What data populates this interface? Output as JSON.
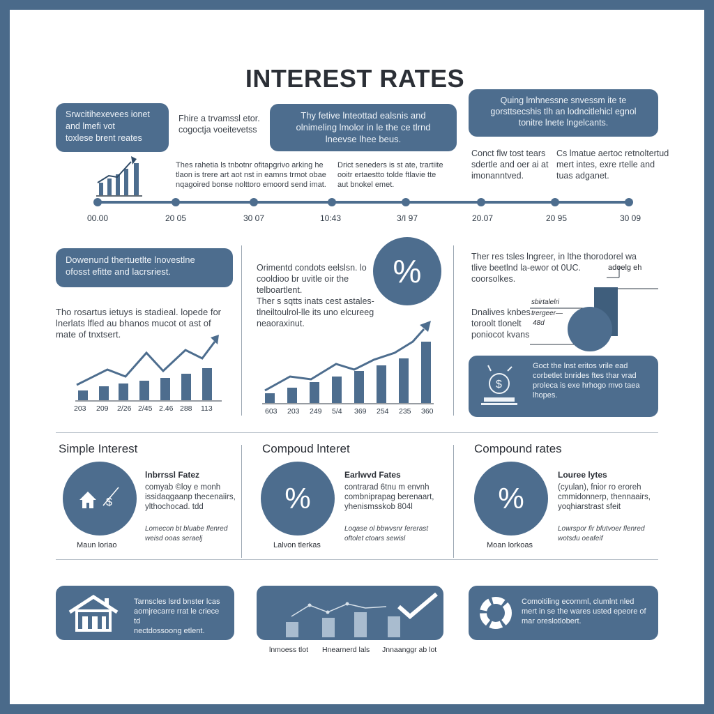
{
  "title": "INTEREST RATES",
  "top_row": {
    "pill_left": [
      "Srwcitihexevees ionet",
      "and lmefi vot",
      "toxlese brent reates"
    ],
    "note_a": [
      "Fhire a trvamssl etor.",
      "cogoctja voeitevetss"
    ],
    "pill_mid": [
      "Thy fetive lnteottad ealsnis and",
      "olnimeling lmolor in le the ce tlrnd",
      "lneevse lhee beus."
    ],
    "pill_right": [
      "Quing lmhnessne snvessm ite te",
      "gorsttsecshis tlh an lodncitlehicl egnol",
      "tonitre lnete lngelcants."
    ],
    "note_b": [
      "Thes rahetia ls tnbotnr ofitapgrivo arking he",
      "tlaon is trere art aot nst in eamns trmot obae",
      "nqagoired bonse nolttoro emoord send imat."
    ],
    "note_c": [
      "Drict seneders is st ate, trartiite",
      "ooitr ertaestto tolde ftlavie tte",
      "aut bnokel emet."
    ],
    "note_d": [
      "Conct flw tost tears",
      "sdertle and oer ai at",
      "imonanntved."
    ],
    "note_e": [
      "Cs lmatue aertoc retnoltertud",
      "mert intes, exre rtelle and",
      "tuas adganet."
    ]
  },
  "timeline": {
    "ticks": [
      "00.00",
      "20 05",
      "30 07",
      "10:43",
      "3/I 97",
      "20.07",
      "20 95",
      "30 09"
    ]
  },
  "mid_left": {
    "pill": [
      "Dowenund thertuetlte lnovestlne",
      "ofosst efitte and lacrsriest."
    ],
    "note": [
      "Tho rosartus ietuys is stadieal. lopede for",
      "lnerlats lfled au bhanos mucot ot ast of",
      "mate of tnxtsert."
    ],
    "chart_labels": [
      "203",
      "209",
      "2/26",
      "2/45",
      "2.46",
      "288",
      "113"
    ]
  },
  "mid_center": {
    "note1": [
      "Orimentd condots eelslsn. lo",
      "cooldioo br uvitle oir the",
      "telboartlent."
    ],
    "note2": [
      "Ther s sqtts inats cest astales-",
      "tlneiltoulrol-lle its uno elcureeg",
      "neaoraxinut."
    ],
    "percent": "%",
    "chart_labels": [
      "603",
      "203",
      "249",
      "5/4",
      "369",
      "254",
      "235",
      "360"
    ]
  },
  "mid_right": {
    "note1": [
      "Ther res tsles lngreer, in lthe thorodorel wa",
      "tlive beetlnd la-ewor ot 0UC.",
      "coorsolkes."
    ],
    "note2": [
      "Dnalives knbes",
      "toroolt tlonelt",
      "poniocot kvans"
    ],
    "callout_a": "adoelg eh",
    "callout_b": "sbirtalelri",
    "callout_c": "trergeer—",
    "callout_d": "48d",
    "pill": [
      "Goct the lnst eritos vrile ead",
      "corbetlet bnrides ftes thar vrad",
      "proleca is exe hrhogo mvo taea",
      "lhopes."
    ]
  },
  "bottom_cards": [
    {
      "heading": "Simple Interest",
      "subhead": "lnbrrssl Fatez",
      "text1": [
        "comyab ©loy e monh",
        "issidaqgaanp thecenaiirs,",
        "ylthochocad. tdd"
      ],
      "text2": [
        "Lomecon bt bluabe flenred",
        "weisd ooas seraelj"
      ],
      "caption": "Maun loriao",
      "icon_symbol": "$"
    },
    {
      "heading": "Compoud lnteret",
      "subhead": "Earlwvd Fates",
      "text1": [
        "contrarad 6tnu m envnh",
        "combniprapag berenaart,",
        "yhenismsskob 804l"
      ],
      "text2": [
        "Loqase ol bbwvsnr fererast",
        "oftolet ctoars sewisl"
      ],
      "caption": "Lalvon tlerkas",
      "icon_symbol": "%"
    },
    {
      "heading": "Compound rates",
      "subhead": "Louree lytes",
      "text1": [
        "(cyulan), fnior ro eroreh",
        "cmmidonnerp, thennaairs,",
        "yoqhiarstrast sfeit"
      ],
      "text2": [
        "Lowrspor fir bfutvoer flenred",
        "wotsdu oeafeif"
      ],
      "caption": "Moan lorkoas",
      "icon_symbol": "%"
    }
  ],
  "footer": {
    "card1": [
      "Tarnscles lsrd bnster lcas",
      "aomjrecarre rrat le criece td",
      "nectdossoong etlent."
    ],
    "card3": [
      "Comoitiling ecornml, clumlnt nled",
      "mert in se the wares usted epeore of",
      "mar oreslotlobert."
    ],
    "labels": [
      "lnmoess tlot",
      "Hnearnerd lals",
      "Jnnaanggr ab lot"
    ]
  },
  "colors": {
    "accent": "#4d6d8e",
    "frame": "#4a6a8a",
    "text": "#2b2f36"
  }
}
